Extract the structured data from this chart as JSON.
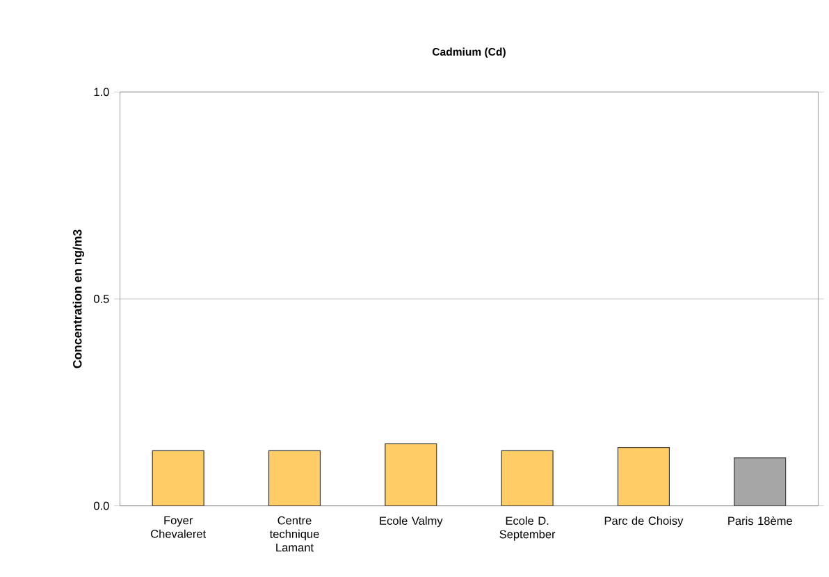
{
  "chart_data": {
    "type": "bar",
    "title": "Cadmium (Cd)",
    "ylabel": "Concentration en ng/m3",
    "categories": [
      "Foyer Chevaleret",
      "Centre technique Lamant",
      "Ecole Valmy",
      "Ecole D. September",
      "Parc de Choisy",
      "Paris 18ème"
    ],
    "values": [
      0.133,
      0.133,
      0.15,
      0.133,
      0.141,
      0.116
    ],
    "colors": [
      "#ffcc66",
      "#ffcc66",
      "#ffcc66",
      "#ffcc66",
      "#ffcc66",
      "#a6a6a6"
    ],
    "ylim": [
      0,
      1
    ],
    "yticks": [
      {
        "value": 0,
        "label": "0.0"
      },
      {
        "value": 0.5,
        "label": "0.5"
      },
      {
        "value": 1,
        "label": "1.0"
      }
    ],
    "grid": "y"
  }
}
